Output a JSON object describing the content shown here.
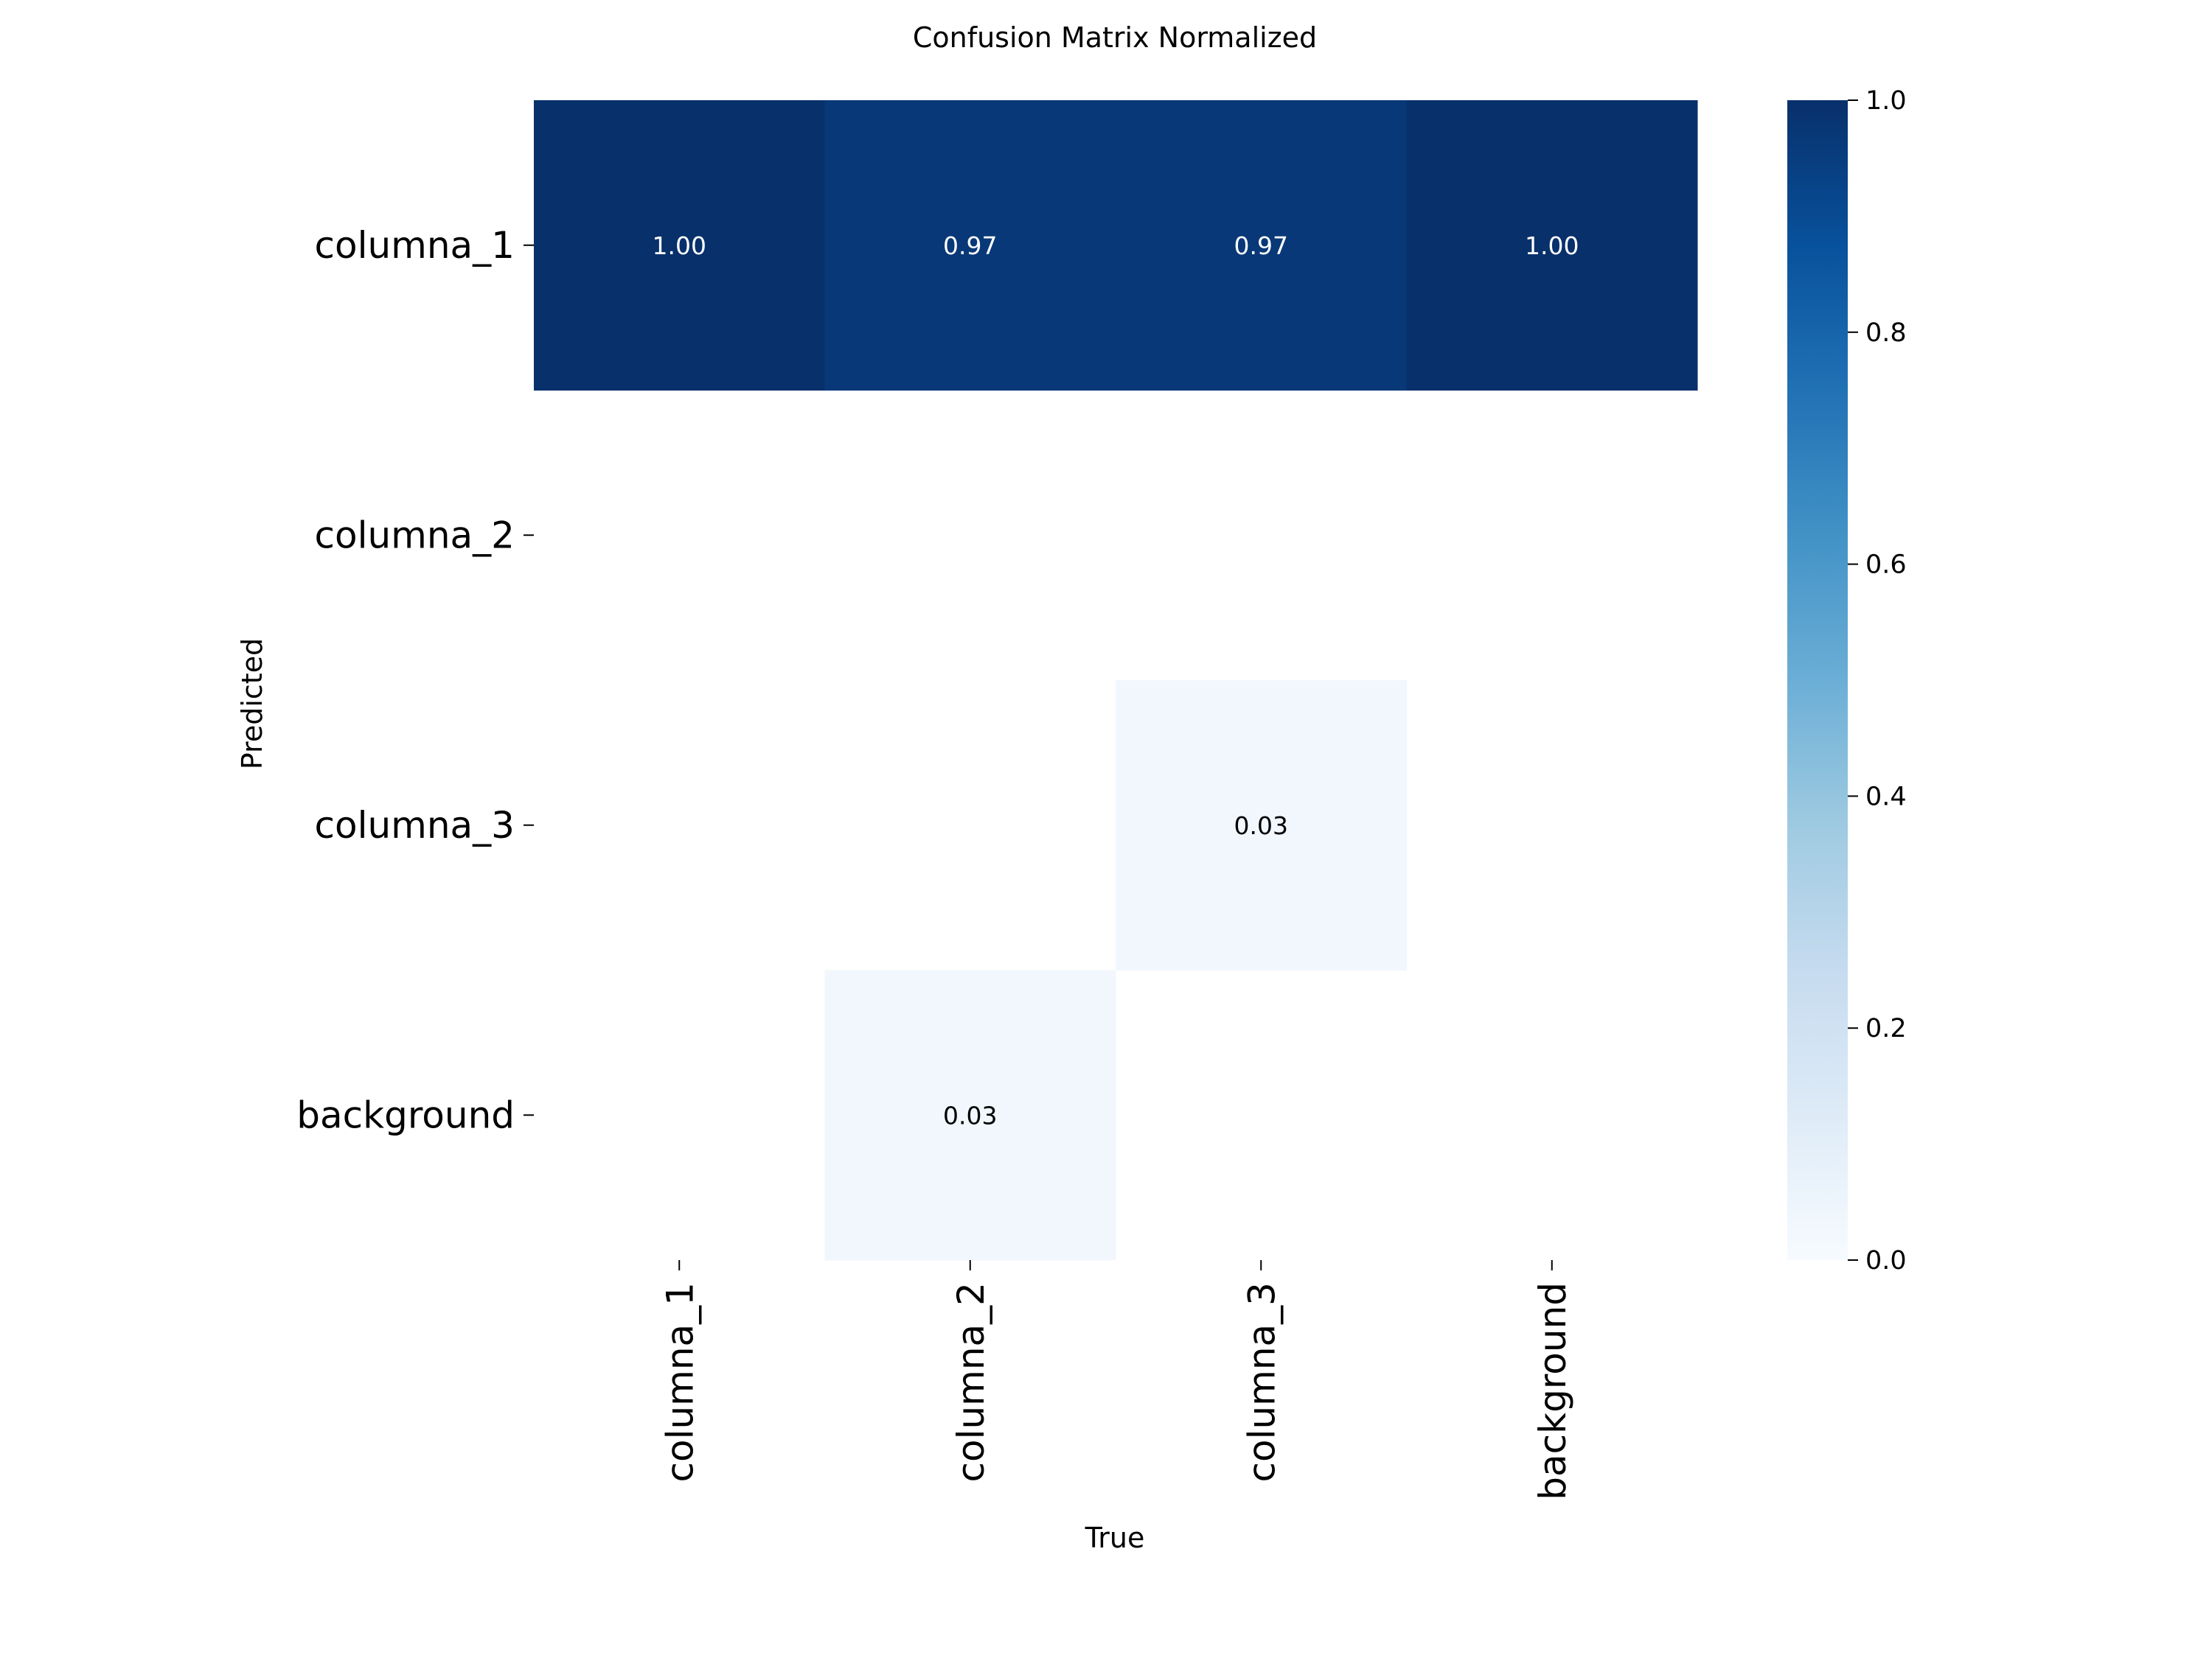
{
  "chart_data": {
    "type": "heatmap",
    "title": "Confusion Matrix Normalized",
    "xlabel": "True",
    "ylabel": "Predicted",
    "x_categories": [
      "columna_1",
      "columna_2",
      "columna_3",
      "background"
    ],
    "y_categories": [
      "columna_1",
      "columna_2",
      "columna_3",
      "background"
    ],
    "values": [
      [
        1.0,
        0.97,
        0.97,
        1.0
      ],
      [
        null,
        null,
        null,
        null
      ],
      [
        null,
        null,
        0.03,
        null
      ],
      [
        null,
        0.03,
        null,
        null
      ]
    ],
    "value_labels": [
      [
        "1.00",
        "0.97",
        "0.97",
        "1.00"
      ],
      [
        "",
        "",
        "",
        ""
      ],
      [
        "",
        "",
        "0.03",
        ""
      ],
      [
        "",
        "0.03",
        "",
        ""
      ]
    ],
    "colorbar": {
      "range": [
        0.0,
        1.0
      ],
      "ticks": [
        0.0,
        0.2,
        0.4,
        0.6,
        0.8,
        1.0
      ],
      "tick_labels": [
        "0.0",
        "0.2",
        "0.4",
        "0.6",
        "0.8",
        "1.0"
      ],
      "colormap": "Blues"
    },
    "grid": false
  }
}
